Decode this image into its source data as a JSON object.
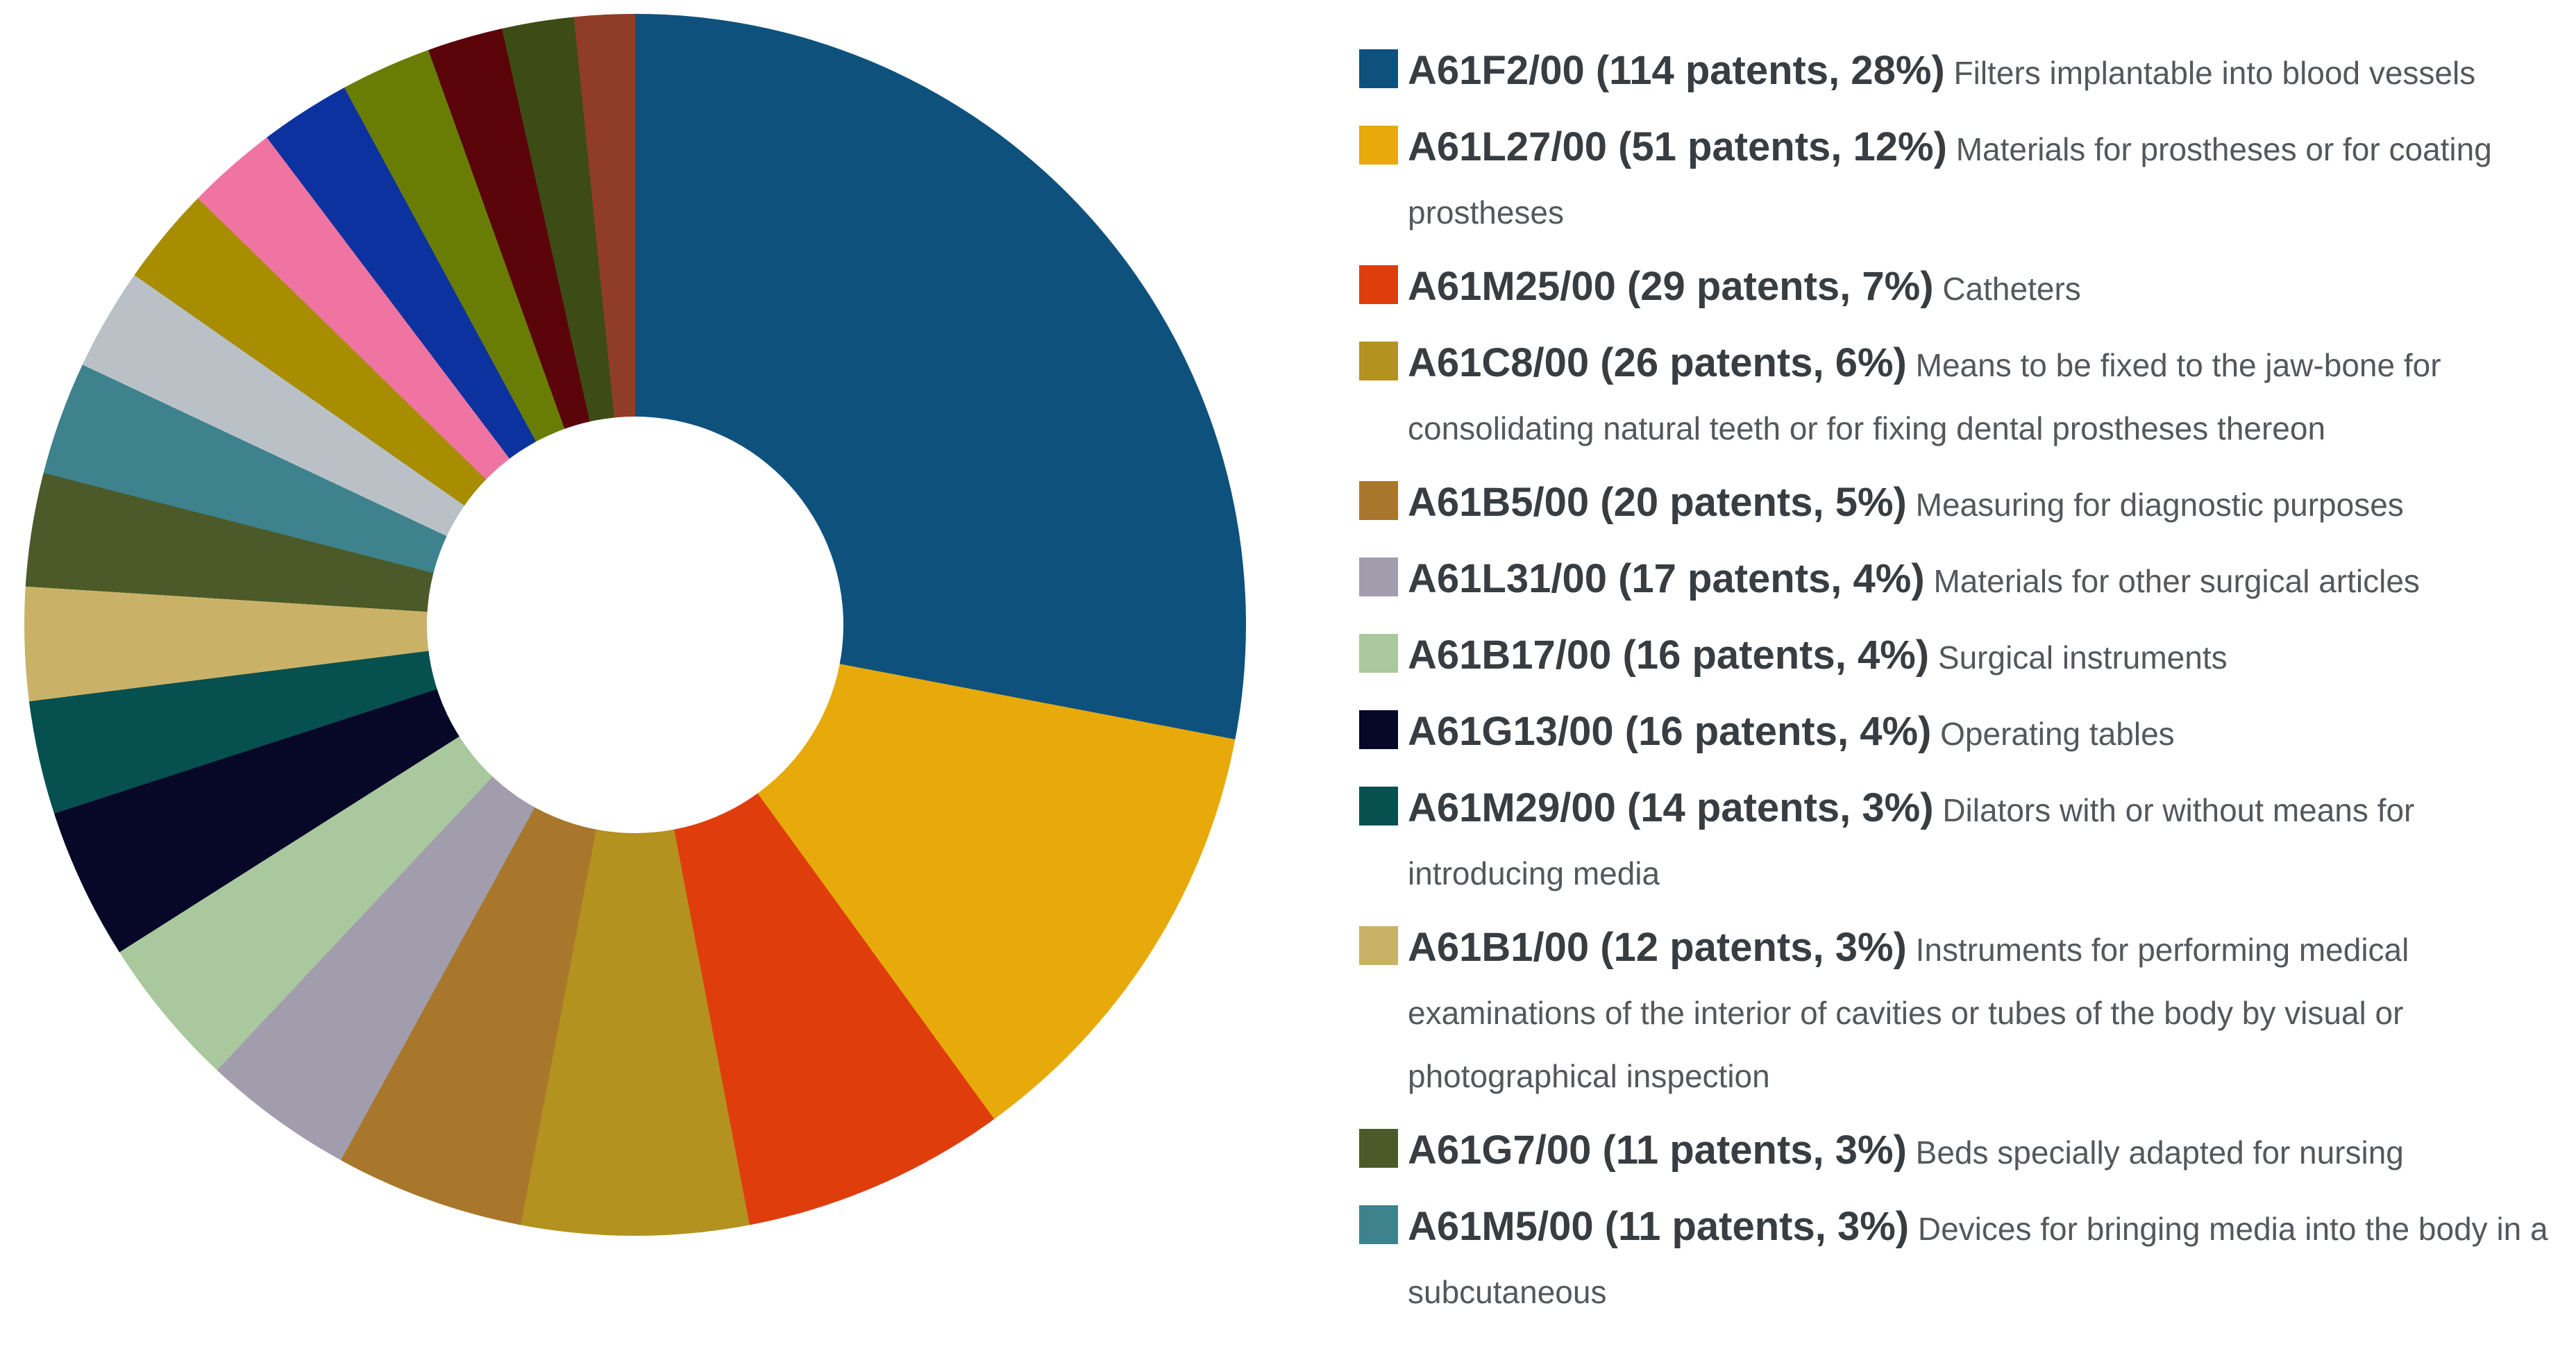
{
  "chart_data": {
    "type": "pie",
    "subtype": "donut",
    "unit": "patents",
    "hole_ratio": 0.34,
    "legend_position": "right",
    "title": "",
    "background_color": "#ffffff",
    "segments": [
      {
        "code": "A61F2/00",
        "patents": 114,
        "percent": 28,
        "sweep": 28.0,
        "label": "A61F2/00 (114 patents, 28%)",
        "description": "Filters implantable into blood vessels",
        "color": "#0f517d",
        "in_legend": true
      },
      {
        "code": "A61L27/00",
        "patents": 51,
        "percent": 12,
        "sweep": 12.0,
        "label": "A61L27/00 (51 patents, 12%)",
        "description": "Materials for prostheses or for coating prostheses",
        "color": "#e7aa0a",
        "in_legend": true
      },
      {
        "code": "A61M25/00",
        "patents": 29,
        "percent": 7,
        "sweep": 7.0,
        "label": "A61M25/00 (29 patents, 7%)",
        "description": "Catheters",
        "color": "#e03d0d",
        "in_legend": true
      },
      {
        "code": "A61C8/00",
        "patents": 26,
        "percent": 6,
        "sweep": 6.0,
        "label": "A61C8/00 (26 patents, 6%)",
        "description": "Means to be fixed to the jaw-bone for consolidating natural teeth or for fixing dental prostheses thereon",
        "color": "#b3921f",
        "in_legend": true
      },
      {
        "code": "A61B5/00",
        "patents": 20,
        "percent": 5,
        "sweep": 5.0,
        "label": "A61B5/00 (20 patents, 5%)",
        "description": "Measuring for diagnostic purposes",
        "color": "#a8772b",
        "in_legend": true
      },
      {
        "code": "A61L31/00",
        "patents": 17,
        "percent": 4,
        "sweep": 4.0,
        "label": "A61L31/00 (17 patents, 4%)",
        "description": "Materials for other surgical articles",
        "color": "#a19dad",
        "in_legend": true
      },
      {
        "code": "A61B17/00",
        "patents": 16,
        "percent": 4,
        "sweep": 4.0,
        "label": "A61B17/00 (16 patents, 4%)",
        "description": "Surgical instruments",
        "color": "#aac89e",
        "in_legend": true
      },
      {
        "code": "A61G13/00",
        "patents": 16,
        "percent": 4,
        "sweep": 4.0,
        "label": "A61G13/00 (16 patents, 4%)",
        "description": "Operating tables",
        "color": "#070727",
        "in_legend": true
      },
      {
        "code": "A61M29/00",
        "patents": 14,
        "percent": 3,
        "sweep": 3.0,
        "label": "A61M29/00 (14 patents, 3%)",
        "description": "Dilators with or without means for introducing media",
        "color": "#075050",
        "in_legend": true
      },
      {
        "code": "A61B1/00",
        "patents": 12,
        "percent": 3,
        "sweep": 3.0,
        "label": "A61B1/00 (12 patents, 3%)",
        "description": "Instruments for performing medical examinations of the interior of cavities or tubes of the body by visual or photographical inspection",
        "color": "#c9b268",
        "in_legend": true
      },
      {
        "code": "A61G7/00",
        "patents": 11,
        "percent": 3,
        "sweep": 3.0,
        "label": "A61G7/00 (11 patents, 3%)",
        "description": "Beds specially adapted for nursing",
        "color": "#4b5a28",
        "in_legend": true
      },
      {
        "code": "A61M5/00",
        "patents": 11,
        "percent": 3,
        "sweep": 3.0,
        "label": "A61M5/00 (11 patents, 3%)",
        "description": "Devices for bringing media into the body in a subcutaneous",
        "color": "#3d828c",
        "in_legend": true
      },
      {
        "code": null,
        "patents": null,
        "percent": null,
        "sweep": 2.7,
        "label": null,
        "description": null,
        "color": "#b9c1c7",
        "in_legend": false
      },
      {
        "code": null,
        "patents": null,
        "percent": null,
        "sweep": 2.6,
        "label": null,
        "description": null,
        "color": "#a88d00",
        "in_legend": false
      },
      {
        "code": null,
        "patents": null,
        "percent": null,
        "sweep": 2.4,
        "label": null,
        "description": null,
        "color": "#f074a2",
        "in_legend": false
      },
      {
        "code": null,
        "patents": null,
        "percent": null,
        "sweep": 2.4,
        "label": null,
        "description": null,
        "color": "#0c329f",
        "in_legend": false
      },
      {
        "code": null,
        "patents": null,
        "percent": null,
        "sweep": 2.4,
        "label": null,
        "description": null,
        "color": "#697d04",
        "in_legend": false
      },
      {
        "code": null,
        "patents": null,
        "percent": null,
        "sweep": 2.0,
        "label": null,
        "description": null,
        "color": "#5a040a",
        "in_legend": false
      },
      {
        "code": null,
        "patents": null,
        "percent": null,
        "sweep": 1.9,
        "label": null,
        "description": null,
        "color": "#3d4b14",
        "in_legend": false
      },
      {
        "code": null,
        "patents": null,
        "percent": null,
        "sweep": 1.6,
        "label": null,
        "description": null,
        "color": "#8f3d27",
        "in_legend": false
      }
    ]
  },
  "styles": {
    "label_color": "#383d42",
    "description_color": "#54585c",
    "hole_color": "#ffffff"
  }
}
